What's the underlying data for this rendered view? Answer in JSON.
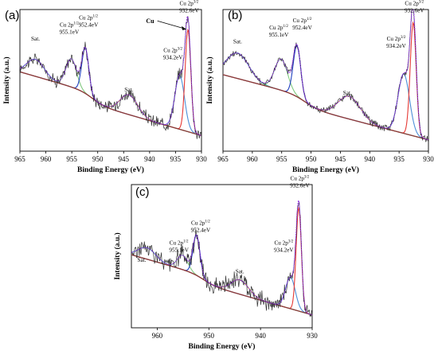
{
  "figure": {
    "panels": [
      {
        "letter": "(a)",
        "xlabel": "Binding Energy (eV)",
        "ylabel": "Intensity (a.u.)",
        "xlim": [
          965,
          930
        ],
        "ylim": [
          0,
          100
        ],
        "xticks": [
          "965",
          "960",
          "955",
          "950",
          "945",
          "940",
          "935",
          "930"
        ],
        "cu_label": "Cu",
        "annotations": {
          "sat1": "Sat.",
          "sat2": "Sat.",
          "cu2p12_line1": "Cu 2p",
          "cu2p12_sup": "1/2",
          "cu2p12_value": "955.1eV",
          "cu2p12b_line1": "Cu 2p",
          "cu2p12b_sup": "1/2",
          "cu2p12b_value": "952.4eV",
          "cu2p32_line1": "Cu 2p",
          "cu2p32_sup": "3/2",
          "cu2p32_value": "934.2eV",
          "cu2p32b_line1": "Cu 2p",
          "cu2p32b_sup": "3/2",
          "cu2p32b_value": "932.6eV"
        }
      },
      {
        "letter": "(b)",
        "xlabel": "Binding Energy (eV)",
        "ylabel": "Intensity (a.u.)",
        "xlim": [
          965,
          930
        ],
        "ylim": [
          0,
          100
        ],
        "xticks": [
          "965",
          "960",
          "955",
          "950",
          "945",
          "940",
          "935",
          "930"
        ],
        "annotations": {
          "sat1": "Sat.",
          "sat2": "Sat.",
          "cu2p12_line1": "Cu 2p",
          "cu2p12_sup": "1/2",
          "cu2p12_value": "955.1eV",
          "cu2p12b_line1": "Cu 2p",
          "cu2p12b_sup": "1/2",
          "cu2p12b_value": "952.4eV",
          "cu2p32_line1": "Cu 2p",
          "cu2p32_sup": "3/2",
          "cu2p32_value": "934.2eV",
          "cu2p32b_line1": "Cu 2p",
          "cu2p32b_sup": "3/2",
          "cu2p32b_value": "932.6eV"
        }
      },
      {
        "letter": "(c)",
        "xlabel": "Binding Energy (eV)",
        "ylabel": "Intensity (a.u.)",
        "xlim": [
          965,
          930
        ],
        "ylim": [
          0,
          100
        ],
        "xticks": [
          "960",
          "950",
          "940",
          "930"
        ],
        "annotations": {
          "sat1": "Sat.",
          "sat2": "Sat.",
          "cu2p12_line1": "Cu 2p",
          "cu2p12_sup": "1/2",
          "cu2p12_value": "955.1eV",
          "cu2p12b_line1": "Cu 2p",
          "cu2p12b_sup": "1/2",
          "cu2p12b_value": "952.4eV",
          "cu2p32_line1": "Cu 2p",
          "cu2p32_sup": "3/2",
          "cu2p32_value": "934.2eV",
          "cu2p32b_line1": "Cu 2p",
          "cu2p32b_sup": "3/2",
          "cu2p32b_value": "932.6eV"
        }
      }
    ]
  },
  "chart_data": [
    {
      "type": "line",
      "xlabel": "Binding Energy (eV)",
      "ylabel": "Intensity (a.u.)",
      "xlim": [
        965,
        930
      ],
      "ylim": [
        0,
        100
      ],
      "grid": false,
      "colors": {
        "raw": "#303030",
        "envelope": "#8a2be2",
        "background": "#8b3a3a",
        "peak_955_1": "#7fc97f",
        "peak_952_4": "#1f3fbf",
        "peak_934_2": "#4c8fd8",
        "peak_932_6": "#e53935",
        "sat_944": "#c9a227",
        "sat_962": "#3fb6b0"
      },
      "peaks": [
        {
          "label": "Sat.",
          "center": 962.0,
          "height": 12,
          "fwhm": 4.0,
          "color_key": "sat_962"
        },
        {
          "label": "Cu 2p1/2 955.1eV",
          "center": 955.1,
          "height": 20,
          "fwhm": 2.4,
          "color_key": "peak_955_1"
        },
        {
          "label": "Cu 2p1/2 952.4eV",
          "center": 952.4,
          "height": 32,
          "fwhm": 1.6,
          "color_key": "peak_952_4"
        },
        {
          "label": "Sat.",
          "center": 944.0,
          "height": 14,
          "fwhm": 4.0,
          "color_key": "sat_944"
        },
        {
          "label": "Cu 2p3/2 934.2eV",
          "center": 934.2,
          "height": 38,
          "fwhm": 2.2,
          "color_key": "peak_934_2"
        },
        {
          "label": "Cu 2p3/2 932.6eV",
          "center": 932.6,
          "height": 72,
          "fwhm": 1.3,
          "color_key": "peak_932_6"
        }
      ],
      "background": {
        "start": 52,
        "end": 15,
        "step_center": 951,
        "step": 8
      },
      "noise": 3.5
    },
    {
      "type": "line",
      "xlabel": "Binding Energy (eV)",
      "ylabel": "Intensity (a.u.)",
      "xlim": [
        965,
        930
      ],
      "ylim": [
        0,
        100
      ],
      "grid": false,
      "colors": {
        "raw": "#303030",
        "envelope": "#8a2be2",
        "background": "#8b3a3a",
        "peak_955_1": "#7fc97f",
        "peak_952_4": "#1f3fbf",
        "peak_934_2": "#4c8fd8",
        "peak_932_6": "#e53935",
        "sat_944": "#c9a227",
        "sat_962": "#3fb6b0"
      },
      "peaks": [
        {
          "label": "Sat.",
          "center": 962.5,
          "height": 18,
          "fwhm": 4.5,
          "color_key": "sat_962"
        },
        {
          "label": "Cu 2p1/2 955.1eV",
          "center": 955.1,
          "height": 22,
          "fwhm": 2.6,
          "color_key": "peak_955_1"
        },
        {
          "label": "Cu 2p1/2 952.4eV",
          "center": 952.4,
          "height": 36,
          "fwhm": 1.5,
          "color_key": "peak_952_4"
        },
        {
          "label": "Sat.",
          "center": 943.5,
          "height": 16,
          "fwhm": 4.5,
          "color_key": "sat_944"
        },
        {
          "label": "Cu 2p3/2 934.2eV",
          "center": 934.2,
          "height": 42,
          "fwhm": 2.3,
          "color_key": "peak_934_2"
        },
        {
          "label": "Cu 2p3/2 932.6eV",
          "center": 932.6,
          "height": 80,
          "fwhm": 1.2,
          "color_key": "peak_932_6"
        }
      ],
      "background": {
        "start": 50,
        "end": 12,
        "step_center": 951,
        "step": 8
      },
      "noise": 2.0
    },
    {
      "type": "line",
      "xlabel": "Binding Energy (eV)",
      "ylabel": "Intensity (a.u.)",
      "xlim": [
        965,
        930
      ],
      "ylim": [
        0,
        100
      ],
      "grid": false,
      "colors": {
        "raw": "#303030",
        "envelope": "#8a2be2",
        "background": "#8b3a3a",
        "peak_955_1": "#7fc97f",
        "peak_952_4": "#1f3fbf",
        "peak_934_2": "#4c8fd8",
        "peak_932_6": "#e53935",
        "sat_944": "#c9a227",
        "sat_962": "#3fb6b0"
      },
      "peaks": [
        {
          "label": "Sat.",
          "center": 962.0,
          "height": 8,
          "fwhm": 4.0,
          "color_key": "sat_962"
        },
        {
          "label": "Cu 2p1/2 955.1eV",
          "center": 955.1,
          "height": 10,
          "fwhm": 2.4,
          "color_key": "peak_955_1"
        },
        {
          "label": "Cu 2p1/2 952.4eV",
          "center": 952.4,
          "height": 28,
          "fwhm": 1.6,
          "color_key": "peak_952_4"
        },
        {
          "label": "Sat.",
          "center": 944.0,
          "height": 10,
          "fwhm": 4.0,
          "color_key": "sat_944"
        },
        {
          "label": "Cu 2p3/2 934.2eV",
          "center": 934.2,
          "height": 22,
          "fwhm": 2.2,
          "color_key": "peak_934_2"
        },
        {
          "label": "Cu 2p3/2 932.6eV",
          "center": 932.6,
          "height": 72,
          "fwhm": 1.2,
          "color_key": "peak_932_6"
        }
      ],
      "background": {
        "start": 48,
        "end": 12,
        "step_center": 951,
        "step": 6
      },
      "noise": 5.0
    }
  ]
}
